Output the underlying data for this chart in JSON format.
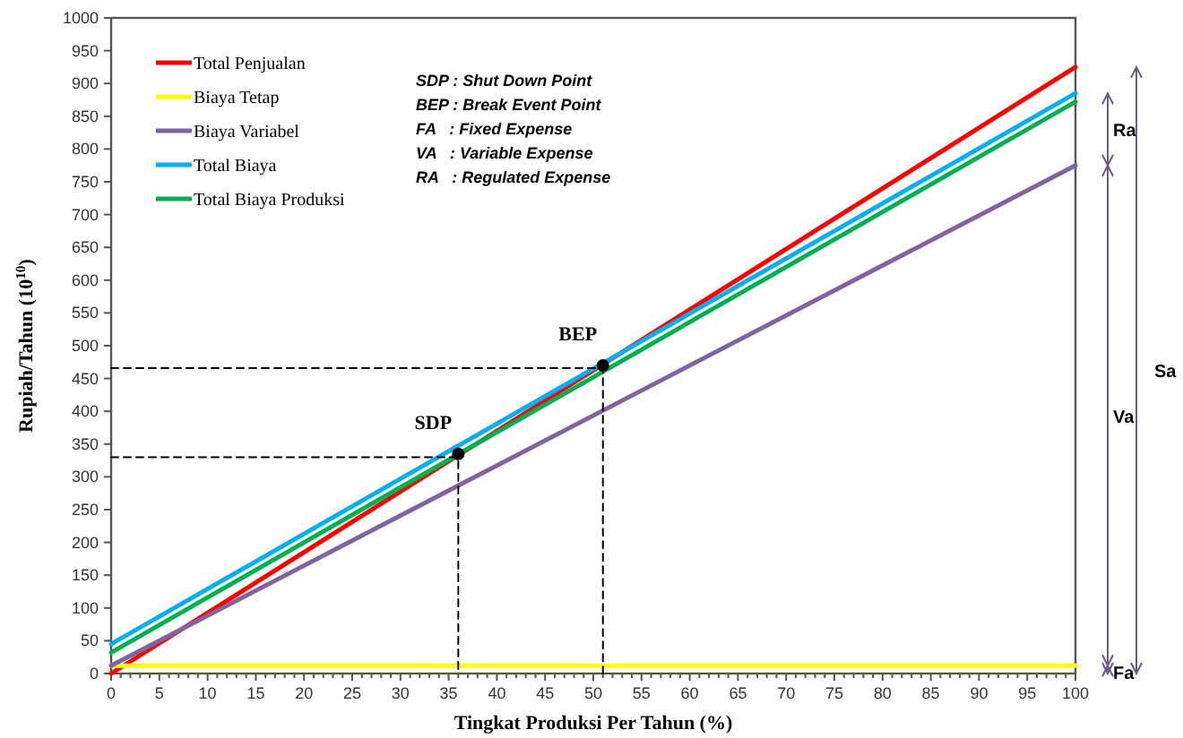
{
  "chart_data": {
    "type": "line",
    "xlabel": "Tingkat Produksi Per Tahun (%)",
    "ylabel": "Rupiah/Tahun (10$^{10}$)",
    "xlim": [
      0,
      100
    ],
    "xticks": [
      0,
      5,
      10,
      15,
      20,
      25,
      30,
      35,
      40,
      45,
      50,
      55,
      60,
      65,
      70,
      75,
      80,
      85,
      90,
      95,
      100
    ],
    "ylim": [
      0,
      1000
    ],
    "yticks": [
      0,
      50,
      100,
      150,
      200,
      250,
      300,
      350,
      400,
      450,
      500,
      550,
      600,
      650,
      700,
      750,
      800,
      850,
      900,
      950,
      1000
    ],
    "legend": "top left",
    "grid": false,
    "series": [
      {
        "name": "Total Penjualan",
        "color": "#ff0000",
        "x": [
          0,
          100
        ],
        "values": [
          0,
          925
        ]
      },
      {
        "name": "Biaya Tetap",
        "color": "#ffff00",
        "x": [
          0,
          100
        ],
        "values": [
          12,
          12
        ]
      },
      {
        "name": "Biaya Variabel",
        "color": "#8064a2",
        "x": [
          0,
          100
        ],
        "values": [
          12,
          775
        ]
      },
      {
        "name": "Total Biaya",
        "color": "#00b0f0",
        "x": [
          0,
          100
        ],
        "values": [
          45,
          885
        ]
      },
      {
        "name": "Total Biaya Produksi",
        "color": "#00b050",
        "x": [
          0,
          100
        ],
        "values": [
          32,
          872
        ]
      },
      {
        "type": "line",
        "color": "#000000",
        "line_style": "dashed",
        "x": [
          0,
          36,
          36
        ],
        "values": [
          330,
          330,
          0
        ]
      },
      {
        "type": "line",
        "color": "#000000",
        "line_style": "dashed",
        "x": [
          0,
          51,
          51
        ],
        "values": [
          466,
          466,
          0
        ]
      },
      {
        "type": "scatter",
        "color": "#000000",
        "marker": "circle",
        "x": [
          36,
          51
        ],
        "values": [
          335,
          470
        ]
      }
    ],
    "annotations": [
      "SDP : Shut Down Point",
      "BEP : Break Event Point",
      "FA   : Fixed Expense",
      "VA   : Variable Expense",
      "RA   : Regulated Expense",
      {
        "text": "SDP",
        "x": 36,
        "y": 335
      },
      {
        "text": "BEP",
        "x": 51,
        "y": 470
      },
      "Ra",
      "Va",
      "Sa",
      "Fa"
    ]
  }
}
